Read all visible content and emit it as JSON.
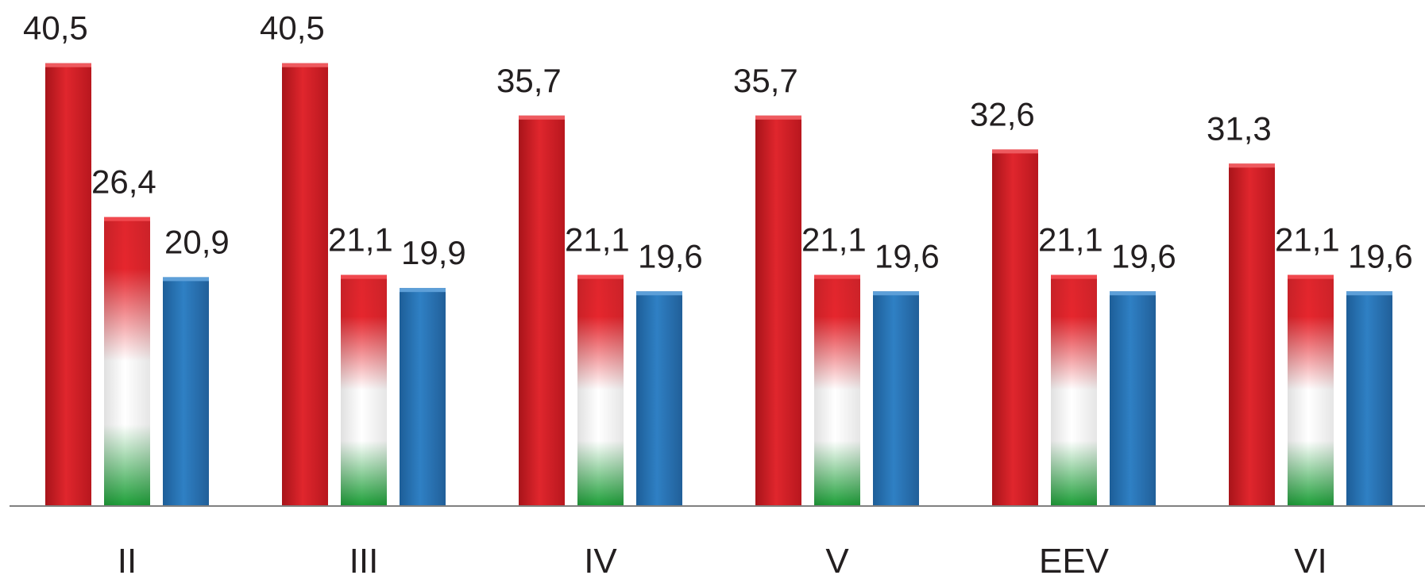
{
  "chart_data": {
    "type": "bar",
    "title": "",
    "xlabel": "",
    "ylabel": "",
    "categories": [
      "II",
      "III",
      "IV",
      "V",
      "EEV",
      "VI"
    ],
    "series": [
      {
        "values": [
          40.5,
          40.5,
          35.7,
          35.7,
          32.6,
          31.3
        ],
        "labels": [
          "40,5",
          "40,5",
          "35,7",
          "35,7",
          "32,6",
          "31,3"
        ],
        "color": "#d9272e"
      },
      {
        "values": [
          26.4,
          21.1,
          21.1,
          21.1,
          21.1,
          21.1
        ],
        "labels": [
          "26,4",
          "21,1",
          "21,1",
          "21,1",
          "21,1",
          "21,1"
        ],
        "color": "hungarian-flag-gradient"
      },
      {
        "values": [
          20.9,
          19.9,
          19.6,
          19.6,
          19.6,
          19.6
        ],
        "labels": [
          "20,9",
          "19,9",
          "19,6",
          "19,6",
          "19,6",
          "19,6"
        ],
        "color": "#2a77b9"
      }
    ],
    "ylim": [
      0,
      45
    ],
    "grid": false,
    "legend": "none",
    "colors": {
      "red": "#d9272e",
      "white": "#ffffff",
      "green": "#2aa33a",
      "blue": "#2a77b9",
      "axis": "#808080",
      "text": "#231f20"
    }
  }
}
